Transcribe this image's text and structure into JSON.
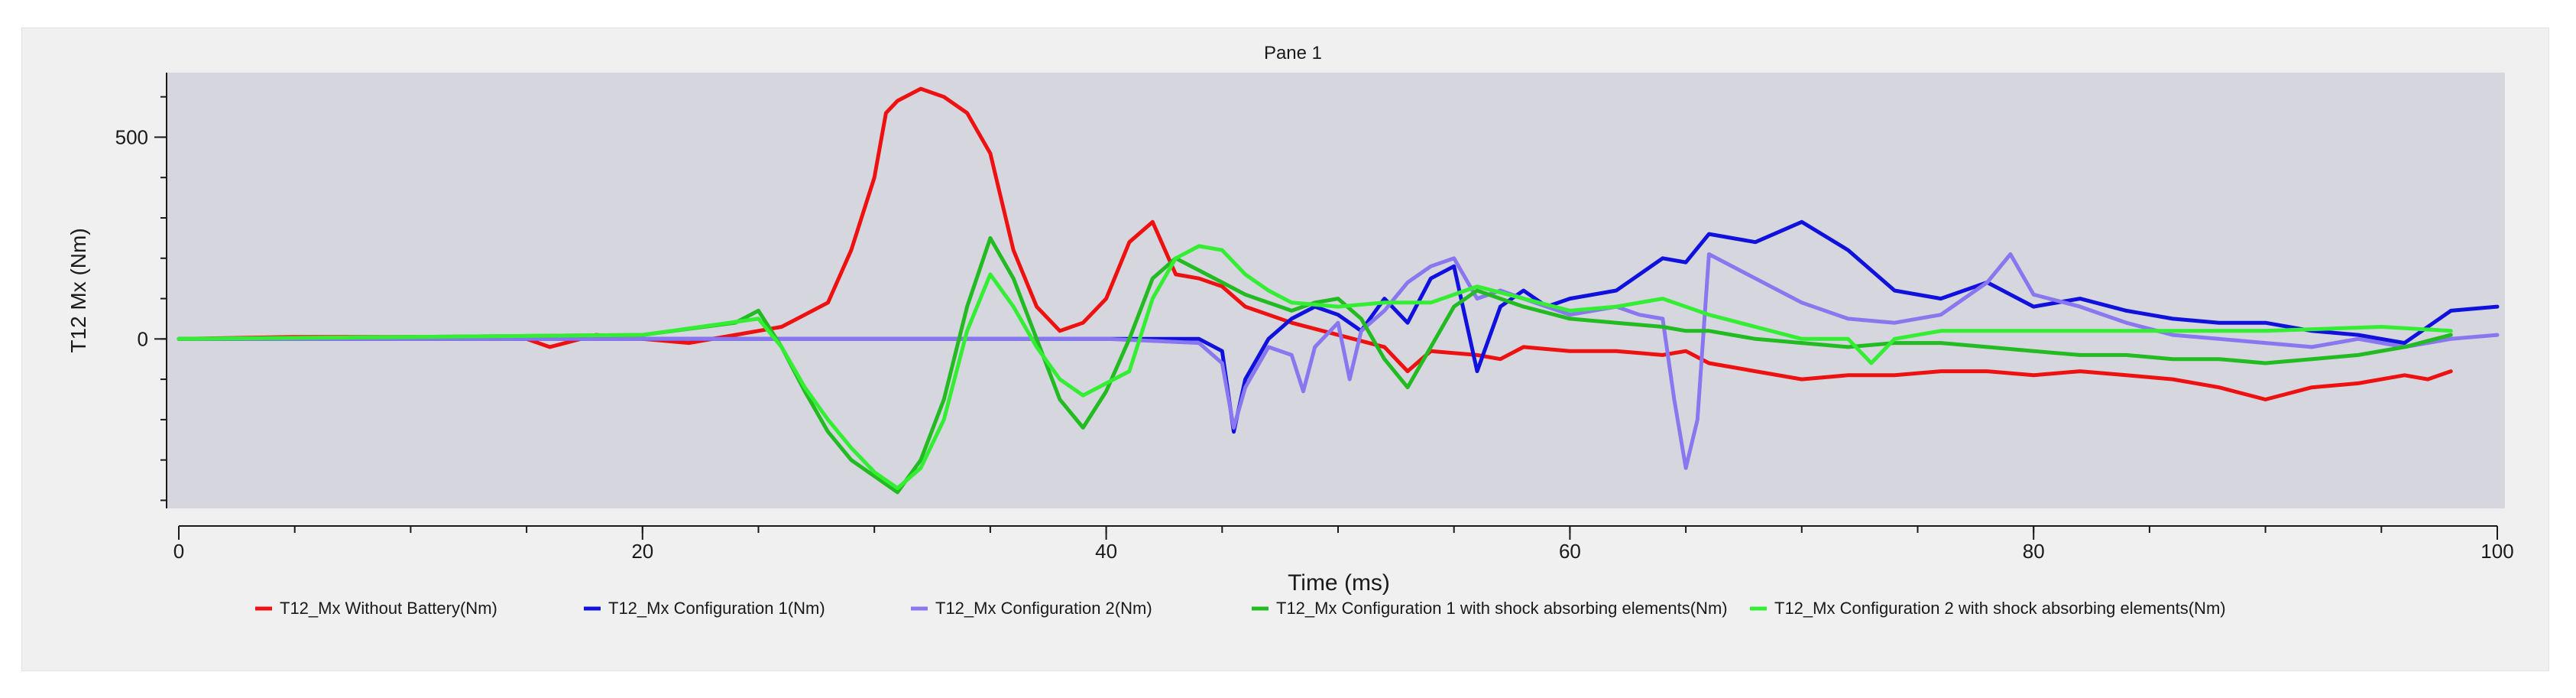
{
  "chart_data": {
    "type": "line",
    "title": "Pane 1",
    "xlabel": "Time (ms)",
    "ylabel": "T12 Mx (Nm)",
    "xlim": [
      0,
      100
    ],
    "ylim": [
      -420,
      660
    ],
    "x_ticks": [
      0,
      20,
      40,
      60,
      80,
      100
    ],
    "y_ticks": [
      500,
      0
    ],
    "grid": false,
    "legend_position": "bottom",
    "colors": {
      "plot_background": "#d6d6de",
      "frame_background": "#f0f0f0",
      "axis": "#1a1a1a"
    },
    "series": [
      {
        "name": "T12_Mx Without Battery(Nm)",
        "color": "#ee1111",
        "points": [
          [
            0,
            0
          ],
          [
            5,
            5
          ],
          [
            10,
            5
          ],
          [
            15,
            0
          ],
          [
            16,
            -20
          ],
          [
            18,
            10
          ],
          [
            20,
            0
          ],
          [
            22,
            -10
          ],
          [
            24,
            10
          ],
          [
            26,
            30
          ],
          [
            27,
            60
          ],
          [
            28,
            90
          ],
          [
            29,
            220
          ],
          [
            30,
            400
          ],
          [
            30.5,
            560
          ],
          [
            31,
            590
          ],
          [
            32,
            620
          ],
          [
            33,
            600
          ],
          [
            34,
            560
          ],
          [
            35,
            460
          ],
          [
            36,
            220
          ],
          [
            37,
            80
          ],
          [
            38,
            20
          ],
          [
            39,
            40
          ],
          [
            40,
            100
          ],
          [
            41,
            240
          ],
          [
            42,
            290
          ],
          [
            43,
            160
          ],
          [
            44,
            150
          ],
          [
            45,
            130
          ],
          [
            46,
            80
          ],
          [
            48,
            40
          ],
          [
            50,
            10
          ],
          [
            52,
            -20
          ],
          [
            53,
            -80
          ],
          [
            54,
            -30
          ],
          [
            56,
            -40
          ],
          [
            57,
            -50
          ],
          [
            58,
            -20
          ],
          [
            60,
            -30
          ],
          [
            62,
            -30
          ],
          [
            64,
            -40
          ],
          [
            65,
            -30
          ],
          [
            66,
            -60
          ],
          [
            68,
            -80
          ],
          [
            70,
            -100
          ],
          [
            72,
            -90
          ],
          [
            74,
            -90
          ],
          [
            76,
            -80
          ],
          [
            78,
            -80
          ],
          [
            80,
            -90
          ],
          [
            82,
            -80
          ],
          [
            84,
            -90
          ],
          [
            86,
            -100
          ],
          [
            88,
            -120
          ],
          [
            90,
            -150
          ],
          [
            92,
            -120
          ],
          [
            94,
            -110
          ],
          [
            96,
            -90
          ],
          [
            97,
            -100
          ],
          [
            98,
            -80
          ]
        ]
      },
      {
        "name": "T12_Mx Configuration 1(Nm)",
        "color": "#1111dd",
        "points": [
          [
            0,
            0
          ],
          [
            10,
            0
          ],
          [
            20,
            0
          ],
          [
            30,
            0
          ],
          [
            40,
            0
          ],
          [
            44,
            0
          ],
          [
            45,
            -30
          ],
          [
            45.5,
            -230
          ],
          [
            46,
            -100
          ],
          [
            47,
            0
          ],
          [
            48,
            50
          ],
          [
            49,
            80
          ],
          [
            50,
            60
          ],
          [
            51,
            20
          ],
          [
            52,
            100
          ],
          [
            53,
            40
          ],
          [
            54,
            150
          ],
          [
            55,
            180
          ],
          [
            56,
            -80
          ],
          [
            57,
            80
          ],
          [
            58,
            120
          ],
          [
            59,
            80
          ],
          [
            60,
            100
          ],
          [
            62,
            120
          ],
          [
            64,
            200
          ],
          [
            65,
            190
          ],
          [
            66,
            260
          ],
          [
            68,
            240
          ],
          [
            70,
            290
          ],
          [
            72,
            220
          ],
          [
            74,
            120
          ],
          [
            76,
            100
          ],
          [
            78,
            140
          ],
          [
            80,
            80
          ],
          [
            82,
            100
          ],
          [
            84,
            70
          ],
          [
            86,
            50
          ],
          [
            88,
            40
          ],
          [
            90,
            40
          ],
          [
            92,
            20
          ],
          [
            94,
            10
          ],
          [
            96,
            -10
          ],
          [
            97,
            30
          ],
          [
            98,
            70
          ],
          [
            100,
            80
          ]
        ]
      },
      {
        "name": "T12_Mx Configuration 2(Nm)",
        "color": "#8877ee",
        "points": [
          [
            0,
            0
          ],
          [
            10,
            0
          ],
          [
            20,
            0
          ],
          [
            30,
            0
          ],
          [
            40,
            0
          ],
          [
            44,
            -10
          ],
          [
            45,
            -60
          ],
          [
            45.5,
            -220
          ],
          [
            46,
            -120
          ],
          [
            47,
            -20
          ],
          [
            48,
            -40
          ],
          [
            48.5,
            -130
          ],
          [
            49,
            -20
          ],
          [
            50,
            40
          ],
          [
            50.5,
            -100
          ],
          [
            51,
            20
          ],
          [
            52,
            70
          ],
          [
            53,
            140
          ],
          [
            54,
            180
          ],
          [
            55,
            200
          ],
          [
            56,
            100
          ],
          [
            57,
            120
          ],
          [
            58,
            100
          ],
          [
            60,
            60
          ],
          [
            62,
            80
          ],
          [
            63,
            60
          ],
          [
            64,
            50
          ],
          [
            64.5,
            -150
          ],
          [
            65,
            -320
          ],
          [
            65.5,
            -200
          ],
          [
            66,
            210
          ],
          [
            68,
            150
          ],
          [
            70,
            90
          ],
          [
            72,
            50
          ],
          [
            74,
            40
          ],
          [
            76,
            60
          ],
          [
            78,
            140
          ],
          [
            79,
            210
          ],
          [
            80,
            110
          ],
          [
            82,
            80
          ],
          [
            84,
            40
          ],
          [
            86,
            10
          ],
          [
            88,
            0
          ],
          [
            90,
            -10
          ],
          [
            92,
            -20
          ],
          [
            94,
            0
          ],
          [
            96,
            -20
          ],
          [
            98,
            0
          ],
          [
            100,
            10
          ]
        ]
      },
      {
        "name": "T12_Mx Configuration 1 with shock absorbing elements(Nm)",
        "color": "#22bb22",
        "points": [
          [
            0,
            0
          ],
          [
            10,
            5
          ],
          [
            20,
            10
          ],
          [
            24,
            40
          ],
          [
            25,
            70
          ],
          [
            26,
            -20
          ],
          [
            27,
            -130
          ],
          [
            28,
            -230
          ],
          [
            29,
            -300
          ],
          [
            30,
            -340
          ],
          [
            31,
            -380
          ],
          [
            32,
            -300
          ],
          [
            33,
            -150
          ],
          [
            34,
            80
          ],
          [
            35,
            250
          ],
          [
            36,
            150
          ],
          [
            37,
            0
          ],
          [
            38,
            -150
          ],
          [
            39,
            -220
          ],
          [
            40,
            -130
          ],
          [
            41,
            0
          ],
          [
            42,
            150
          ],
          [
            43,
            200
          ],
          [
            44,
            170
          ],
          [
            45,
            140
          ],
          [
            46,
            110
          ],
          [
            48,
            70
          ],
          [
            49,
            90
          ],
          [
            50,
            100
          ],
          [
            51,
            50
          ],
          [
            52,
            -50
          ],
          [
            53,
            -120
          ],
          [
            54,
            -20
          ],
          [
            55,
            80
          ],
          [
            56,
            120
          ],
          [
            57,
            100
          ],
          [
            58,
            80
          ],
          [
            60,
            50
          ],
          [
            62,
            40
          ],
          [
            64,
            30
          ],
          [
            65,
            20
          ],
          [
            66,
            20
          ],
          [
            68,
            0
          ],
          [
            70,
            -10
          ],
          [
            72,
            -20
          ],
          [
            74,
            -10
          ],
          [
            76,
            -10
          ],
          [
            78,
            -20
          ],
          [
            80,
            -30
          ],
          [
            82,
            -40
          ],
          [
            84,
            -40
          ],
          [
            86,
            -50
          ],
          [
            88,
            -50
          ],
          [
            90,
            -60
          ],
          [
            92,
            -50
          ],
          [
            94,
            -40
          ],
          [
            96,
            -20
          ],
          [
            98,
            10
          ]
        ]
      },
      {
        "name": "T12_Mx Configuration 2 with shock absorbing elements(Nm)",
        "color": "#33ee33",
        "points": [
          [
            0,
            0
          ],
          [
            10,
            5
          ],
          [
            20,
            10
          ],
          [
            25,
            50
          ],
          [
            26,
            -20
          ],
          [
            27,
            -120
          ],
          [
            28,
            -200
          ],
          [
            29,
            -270
          ],
          [
            30,
            -330
          ],
          [
            31,
            -370
          ],
          [
            32,
            -320
          ],
          [
            33,
            -200
          ],
          [
            34,
            20
          ],
          [
            35,
            160
          ],
          [
            36,
            80
          ],
          [
            37,
            -20
          ],
          [
            38,
            -100
          ],
          [
            39,
            -140
          ],
          [
            40,
            -110
          ],
          [
            41,
            -80
          ],
          [
            42,
            100
          ],
          [
            43,
            200
          ],
          [
            44,
            230
          ],
          [
            45,
            220
          ],
          [
            46,
            160
          ],
          [
            47,
            120
          ],
          [
            48,
            90
          ],
          [
            50,
            80
          ],
          [
            52,
            90
          ],
          [
            54,
            90
          ],
          [
            56,
            130
          ],
          [
            58,
            100
          ],
          [
            60,
            70
          ],
          [
            62,
            80
          ],
          [
            64,
            100
          ],
          [
            66,
            60
          ],
          [
            68,
            30
          ],
          [
            70,
            0
          ],
          [
            72,
            0
          ],
          [
            73,
            -60
          ],
          [
            74,
            0
          ],
          [
            76,
            20
          ],
          [
            80,
            20
          ],
          [
            85,
            20
          ],
          [
            90,
            20
          ],
          [
            95,
            30
          ],
          [
            98,
            20
          ]
        ]
      }
    ]
  }
}
